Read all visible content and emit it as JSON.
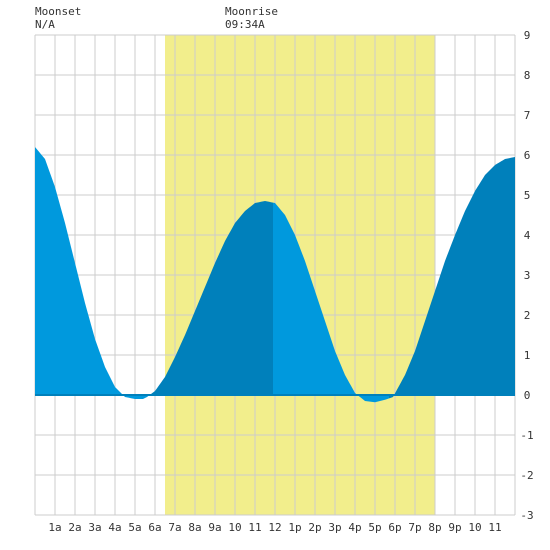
{
  "moon": {
    "moonset_label": "Moonset",
    "moonset_time": "N/A",
    "moonrise_label": "Moonrise",
    "moonrise_time": "09:34A"
  },
  "chart_data": {
    "type": "area",
    "title": "",
    "xlabel": "",
    "ylabel": "",
    "xlim": [
      0,
      24
    ],
    "ylim": [
      -3,
      9
    ],
    "grid": true,
    "y_ticks": [
      "-3",
      "-2",
      "-1",
      "0",
      "1",
      "2",
      "3",
      "4",
      "5",
      "6",
      "7",
      "8",
      "9"
    ],
    "x_ticks": [
      {
        "hour": 1,
        "label": "1a"
      },
      {
        "hour": 2,
        "label": "2a"
      },
      {
        "hour": 3,
        "label": "3a"
      },
      {
        "hour": 4,
        "label": "4a"
      },
      {
        "hour": 5,
        "label": "5a"
      },
      {
        "hour": 6,
        "label": "6a"
      },
      {
        "hour": 7,
        "label": "7a"
      },
      {
        "hour": 8,
        "label": "8a"
      },
      {
        "hour": 9,
        "label": "9a"
      },
      {
        "hour": 10,
        "label": "10"
      },
      {
        "hour": 11,
        "label": "11"
      },
      {
        "hour": 12,
        "label": "12"
      },
      {
        "hour": 13,
        "label": "1p"
      },
      {
        "hour": 14,
        "label": "2p"
      },
      {
        "hour": 15,
        "label": "3p"
      },
      {
        "hour": 16,
        "label": "4p"
      },
      {
        "hour": 17,
        "label": "5p"
      },
      {
        "hour": 18,
        "label": "6p"
      },
      {
        "hour": 19,
        "label": "7p"
      },
      {
        "hour": 20,
        "label": "8p"
      },
      {
        "hour": 21,
        "label": "9p"
      },
      {
        "hour": 22,
        "label": "10"
      },
      {
        "hour": 23,
        "label": "11"
      }
    ],
    "daylight": {
      "start_hour": 6.5,
      "end_hour": 20.0,
      "color": "#f2ee8c"
    },
    "series": [
      {
        "hours": [
          0,
          0.5,
          1,
          1.5,
          2,
          2.5,
          3,
          3.5,
          4,
          4.5,
          5,
          5.4,
          5.6,
          6,
          6.5,
          7,
          7.5,
          8,
          8.5,
          9,
          9.5,
          10,
          10.5,
          11,
          11.5,
          12,
          12.5,
          13,
          13.5,
          14,
          14.5,
          15,
          15.5,
          16,
          16.5,
          17,
          17.5,
          17.9,
          18.5,
          19,
          19.5,
          20,
          20.5,
          21,
          21.5,
          22,
          22.5,
          23,
          23.5,
          24
        ],
        "heights": [
          6.2,
          5.9,
          5.2,
          4.3,
          3.3,
          2.3,
          1.4,
          0.7,
          0.2,
          -0.05,
          -0.1,
          -0.1,
          -0.05,
          0.1,
          0.45,
          0.95,
          1.5,
          2.1,
          2.7,
          3.3,
          3.85,
          4.3,
          4.6,
          4.8,
          4.85,
          4.8,
          4.5,
          4.0,
          3.35,
          2.6,
          1.85,
          1.1,
          0.5,
          0.05,
          -0.15,
          -0.18,
          -0.12,
          -0.05,
          0.5,
          1.1,
          1.85,
          2.6,
          3.35,
          4.0,
          4.6,
          5.1,
          5.5,
          5.75,
          5.9,
          5.95
        ]
      }
    ],
    "tide_phases": [
      {
        "from_hour": 0,
        "to_hour": 5.7,
        "phase": "falling"
      },
      {
        "from_hour": 5.7,
        "to_hour": 11.9,
        "phase": "rising"
      },
      {
        "from_hour": 11.9,
        "to_hour": 17.7,
        "phase": "falling"
      },
      {
        "from_hour": 17.7,
        "to_hour": 24,
        "phase": "rising"
      }
    ],
    "colors": {
      "rising": "#0080bb",
      "falling": "#0099dd",
      "grid": "#cccccc",
      "zero_line": "#0080bb",
      "tick_text": "#333333"
    }
  }
}
